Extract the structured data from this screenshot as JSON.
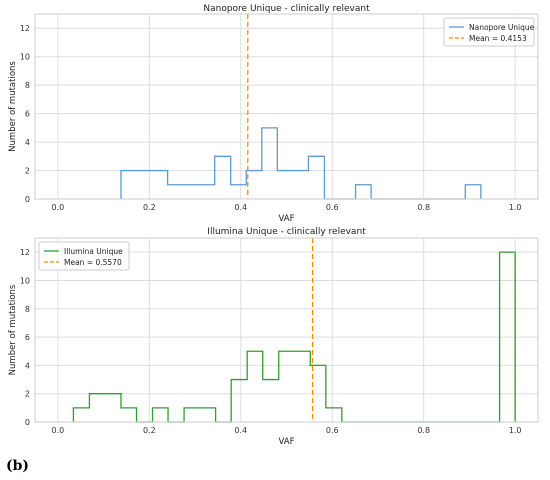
{
  "panel_label": "(b)",
  "chart_data": [
    {
      "type": "histogram",
      "title": "Nanopore Unique - clinically relevant",
      "xlabel": "VAF",
      "ylabel": "Number of mutations",
      "xlim": [
        -0.05,
        1.05
      ],
      "ylim": [
        0,
        13
      ],
      "xticks": [
        "0.0",
        "0.2",
        "0.4",
        "0.6",
        "0.8",
        "1.0"
      ],
      "yticks": [
        "0",
        "2",
        "4",
        "6",
        "8",
        "10",
        "12"
      ],
      "grid": true,
      "legend_position": "top-right",
      "series": [
        {
          "name": "Nanopore Unique",
          "color": "#5b9bd5",
          "bin_edges": [
            0.138,
            0.172,
            0.206,
            0.24,
            0.275,
            0.309,
            0.343,
            0.378,
            0.412,
            0.446,
            0.48,
            0.514,
            0.548,
            0.583,
            0.617,
            0.651,
            0.685,
            0.72,
            0.754,
            0.788,
            0.822,
            0.857,
            0.891,
            0.925
          ],
          "counts": [
            2,
            2,
            2,
            1,
            1,
            1,
            3,
            1,
            2,
            5,
            2,
            2,
            3,
            0,
            0,
            1,
            0,
            0,
            0,
            0,
            0,
            0,
            1
          ]
        }
      ],
      "reference_line": {
        "label": "Mean = 0.4153",
        "value": 0.4153,
        "color": "#ff8c00"
      }
    },
    {
      "type": "histogram",
      "title": "Illumina Unique - clinically relevant",
      "xlabel": "VAF",
      "ylabel": "Number of mutations",
      "xlim": [
        -0.05,
        1.05
      ],
      "ylim": [
        0,
        13
      ],
      "xticks": [
        "0.0",
        "0.2",
        "0.4",
        "0.6",
        "0.8",
        "1.0"
      ],
      "yticks": [
        "0",
        "2",
        "4",
        "6",
        "8",
        "10",
        "12"
      ],
      "grid": true,
      "legend_position": "top-left",
      "series": [
        {
          "name": "Illumina Unique",
          "color": "#2ca02c",
          "bin_edges": [
            0.034,
            0.069,
            0.103,
            0.138,
            0.172,
            0.207,
            0.241,
            0.276,
            0.31,
            0.345,
            0.379,
            0.414,
            0.448,
            0.483,
            0.517,
            0.552,
            0.586,
            0.621,
            0.655,
            0.69,
            0.724,
            0.759,
            0.793,
            0.828,
            0.862,
            0.897,
            0.931,
            0.966,
            1.0
          ],
          "counts": [
            1,
            2,
            2,
            1,
            0,
            1,
            0,
            1,
            1,
            0,
            3,
            5,
            3,
            5,
            5,
            4,
            1,
            0,
            0,
            0,
            0,
            0,
            0,
            0,
            0,
            0,
            0,
            12
          ]
        }
      ],
      "reference_line": {
        "label": "Mean = 0.5570",
        "value": 0.557,
        "color": "#ff8c00"
      }
    }
  ]
}
